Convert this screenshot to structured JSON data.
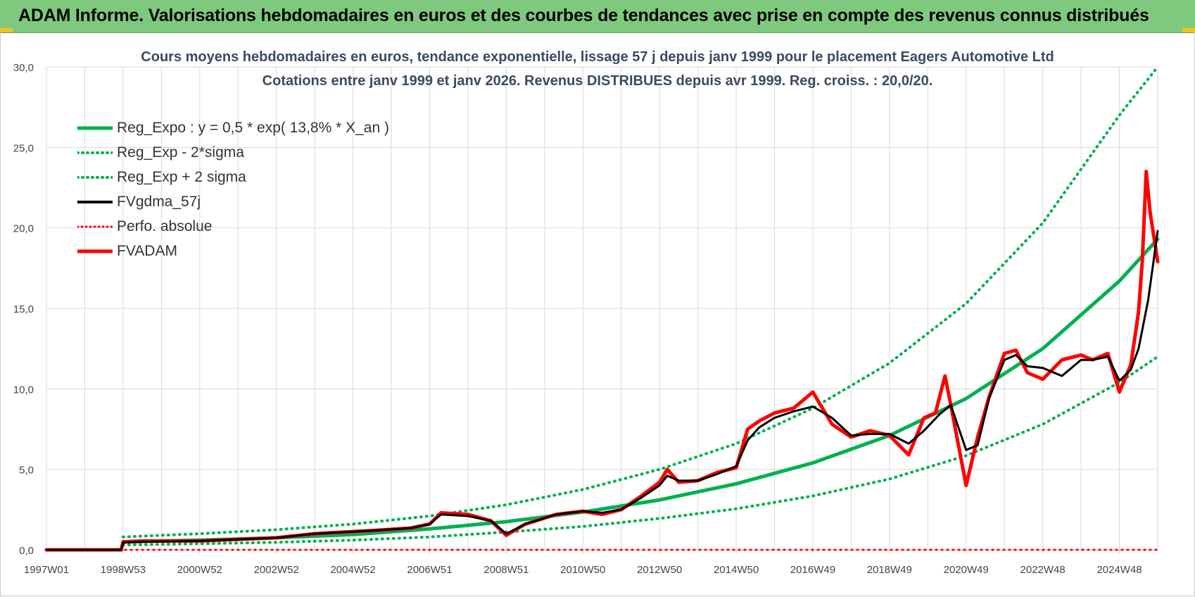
{
  "banner": {
    "title": "ADAM Informe. Valorisations hebdomadaires en euros et des courbes de tendances avec prise en compte des revenus connus distribués"
  },
  "colors": {
    "banner_bg": "#7fc97f",
    "green": "#00b050",
    "red": "#ff0000",
    "black": "#000000",
    "title_text": "#3b4a62"
  },
  "chart_data": {
    "type": "line",
    "title": "Cours moyens hebdomadaires en euros, tendance exponentielle, lissage 57 j depuis janv 1999 pour le placement Eagers Automotive Ltd",
    "subtitle": "Cotations entre janv 1999 et janv 2026. Revenus DISTRIBUES depuis avr 1999. Reg. croiss. : 20,0/20.",
    "xlabel": "",
    "ylabel": "",
    "ylim": [
      0,
      30
    ],
    "yticks": [
      "0,0",
      "5,0",
      "10,0",
      "15,0",
      "20,0",
      "25,0",
      "30,0"
    ],
    "xlim": [
      1997.0,
      2026.0
    ],
    "xticks": [
      {
        "label": "1997W01",
        "x": 1997.0
      },
      {
        "label": "1998W53",
        "x": 1999.0
      },
      {
        "label": "2000W52",
        "x": 2001.0
      },
      {
        "label": "2002W52",
        "x": 2003.0
      },
      {
        "label": "2004W52",
        "x": 2005.0
      },
      {
        "label": "2006W51",
        "x": 2007.0
      },
      {
        "label": "2008W51",
        "x": 2009.0
      },
      {
        "label": "2010W50",
        "x": 2011.0
      },
      {
        "label": "2012W50",
        "x": 2013.0
      },
      {
        "label": "2014W50",
        "x": 2015.0
      },
      {
        "label": "2016W49",
        "x": 2017.0
      },
      {
        "label": "2018W49",
        "x": 2019.0
      },
      {
        "label": "2020W49",
        "x": 2021.0
      },
      {
        "label": "2022W48",
        "x": 2023.0
      },
      {
        "label": "2024W48",
        "x": 2025.0
      }
    ],
    "grid": true,
    "legend_position": "top-left",
    "series": [
      {
        "name": "Reg_Expo : y = 0,5 * exp( 13,8% *  X_an )",
        "style": "solid-thick",
        "color": "#00b050",
        "x": [
          1999.0,
          2001.0,
          2003.0,
          2005.0,
          2007.0,
          2009.0,
          2011.0,
          2013.0,
          2015.0,
          2017.0,
          2019.0,
          2021.0,
          2023.0,
          2025.0,
          2026.0
        ],
        "y": [
          0.5,
          0.6,
          0.75,
          0.95,
          1.3,
          1.75,
          2.35,
          3.1,
          4.1,
          5.4,
          7.1,
          9.4,
          12.5,
          16.7,
          19.3
        ]
      },
      {
        "name": "Reg_Exp - 2*sigma",
        "style": "dotted",
        "color": "#00b050",
        "x": [
          1999.0,
          2001.0,
          2003.0,
          2005.0,
          2007.0,
          2009.0,
          2011.0,
          2013.0,
          2015.0,
          2017.0,
          2019.0,
          2021.0,
          2023.0,
          2025.0,
          2026.0
        ],
        "y": [
          0.3,
          0.38,
          0.47,
          0.6,
          0.8,
          1.1,
          1.45,
          1.95,
          2.55,
          3.35,
          4.4,
          5.85,
          7.8,
          10.4,
          12.0
        ]
      },
      {
        "name": "Reg_Exp + 2 sigma",
        "style": "dotted",
        "color": "#00b050",
        "x": [
          1999.0,
          2001.0,
          2003.0,
          2005.0,
          2007.0,
          2009.0,
          2011.0,
          2013.0,
          2015.0,
          2017.0,
          2019.0,
          2021.0,
          2023.0,
          2025.0,
          2026.0
        ],
        "y": [
          0.8,
          1.0,
          1.25,
          1.6,
          2.1,
          2.8,
          3.75,
          5.0,
          6.6,
          8.8,
          11.6,
          15.3,
          20.3,
          27.0,
          30.0
        ]
      },
      {
        "name": "FVgdma_57j",
        "style": "solid",
        "color": "#000000",
        "x": [
          1997.0,
          1998.95,
          1999.0,
          1999.5,
          2001.0,
          2003.0,
          2004.0,
          2005.5,
          2006.5,
          2007.0,
          2007.3,
          2008.0,
          2008.6,
          2009.0,
          2009.5,
          2010.3,
          2011.0,
          2011.5,
          2012.0,
          2012.5,
          2013.0,
          2013.2,
          2013.5,
          2014.0,
          2014.5,
          2015.0,
          2015.3,
          2015.6,
          2016.0,
          2016.5,
          2017.0,
          2017.5,
          2018.0,
          2018.5,
          2019.0,
          2019.5,
          2019.9,
          2020.3,
          2020.6,
          2021.0,
          2021.3,
          2021.6,
          2022.0,
          2022.3,
          2022.6,
          2023.0,
          2023.5,
          2024.0,
          2024.3,
          2024.7,
          2025.0,
          2025.3,
          2025.5,
          2025.75,
          2026.0
        ],
        "y": [
          0.0,
          0.0,
          0.45,
          0.5,
          0.55,
          0.75,
          1.0,
          1.2,
          1.35,
          1.6,
          2.2,
          2.1,
          1.8,
          1.0,
          1.6,
          2.2,
          2.4,
          2.3,
          2.5,
          3.2,
          4.0,
          4.6,
          4.3,
          4.3,
          4.7,
          5.2,
          6.8,
          7.6,
          8.2,
          8.6,
          8.9,
          8.2,
          7.1,
          7.2,
          7.2,
          6.6,
          7.4,
          8.4,
          9.0,
          6.2,
          6.5,
          9.4,
          11.8,
          12.1,
          11.4,
          11.3,
          10.8,
          11.8,
          11.8,
          12.0,
          10.5,
          11.2,
          12.5,
          15.5,
          19.8
        ]
      },
      {
        "name": "Perfo. absolue",
        "style": "dotted",
        "color": "#ff0000",
        "x": [
          1997.0,
          2026.0
        ],
        "y": [
          0.0,
          0.0
        ]
      },
      {
        "name": "FVADAM",
        "style": "solid-thick",
        "color": "#ff0000",
        "x": [
          1997.0,
          1998.95,
          1999.0,
          1999.5,
          2001.0,
          2003.0,
          2004.0,
          2005.5,
          2006.5,
          2007.0,
          2007.3,
          2008.0,
          2008.6,
          2009.0,
          2009.5,
          2010.3,
          2011.0,
          2011.5,
          2012.0,
          2012.5,
          2013.0,
          2013.2,
          2013.5,
          2014.0,
          2014.5,
          2015.0,
          2015.3,
          2015.6,
          2016.0,
          2016.5,
          2017.0,
          2017.5,
          2018.0,
          2018.5,
          2019.0,
          2019.5,
          2019.9,
          2020.2,
          2020.45,
          2020.6,
          2021.0,
          2021.3,
          2021.6,
          2022.0,
          2022.3,
          2022.6,
          2023.0,
          2023.5,
          2024.0,
          2024.3,
          2024.7,
          2025.0,
          2025.3,
          2025.5,
          2025.6,
          2025.7,
          2025.8,
          2026.0
        ],
        "y": [
          0.0,
          0.0,
          0.5,
          0.55,
          0.55,
          0.75,
          1.0,
          1.2,
          1.35,
          1.6,
          2.3,
          2.2,
          1.8,
          0.9,
          1.6,
          2.2,
          2.4,
          2.2,
          2.5,
          3.3,
          4.2,
          5.0,
          4.2,
          4.3,
          4.8,
          5.1,
          7.5,
          8.0,
          8.5,
          8.8,
          9.8,
          7.8,
          7.0,
          7.4,
          7.1,
          5.9,
          8.2,
          8.5,
          10.8,
          9.0,
          4.0,
          7.0,
          9.5,
          12.2,
          12.4,
          11.0,
          10.6,
          11.8,
          12.1,
          11.8,
          12.2,
          9.8,
          11.5,
          14.8,
          18.0,
          23.5,
          21.0,
          17.9
        ]
      }
    ]
  }
}
